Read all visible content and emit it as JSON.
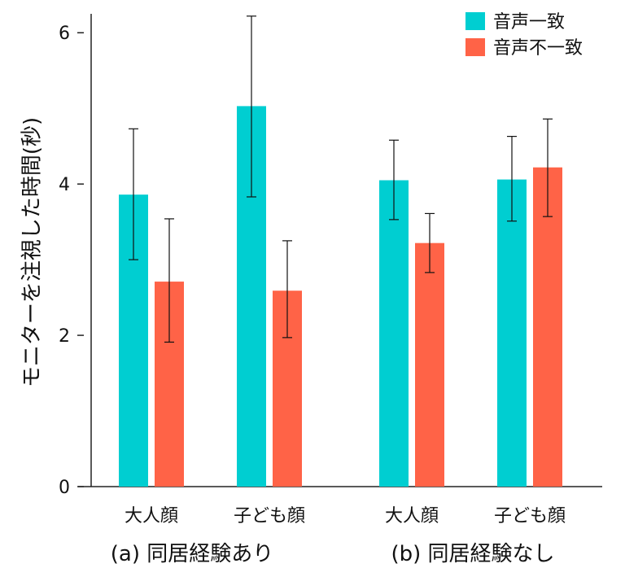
{
  "chart_data": {
    "type": "bar",
    "title": "",
    "xlabel": "",
    "ylabel": "モニターを注視した時間(秒)",
    "categories": [
      "大人顔",
      "子ども顔",
      "大人顔",
      "子ども顔"
    ],
    "groups": [
      {
        "label": "(a) 同居経験あり",
        "category_indices": [
          0,
          1
        ]
      },
      {
        "label": "(b) 同居経験なし",
        "category_indices": [
          2,
          3
        ]
      }
    ],
    "series": [
      {
        "name": "音声一致",
        "color": "#00CED1",
        "values": [
          3.86,
          5.03,
          4.05,
          4.06
        ],
        "error_low": [
          3.0,
          3.83,
          3.53,
          3.51
        ],
        "error_high": [
          4.73,
          6.22,
          4.58,
          4.63
        ]
      },
      {
        "name": "音声不一致",
        "color": "#FF6347",
        "values": [
          2.71,
          2.59,
          3.22,
          4.22
        ],
        "error_low": [
          1.91,
          1.97,
          2.83,
          3.57
        ],
        "error_high": [
          3.54,
          3.25,
          3.61,
          4.86
        ]
      }
    ],
    "yticks": [
      0,
      2,
      4,
      6
    ],
    "ylim": [
      0,
      6.25
    ],
    "grid": false,
    "legend": "top-right"
  }
}
